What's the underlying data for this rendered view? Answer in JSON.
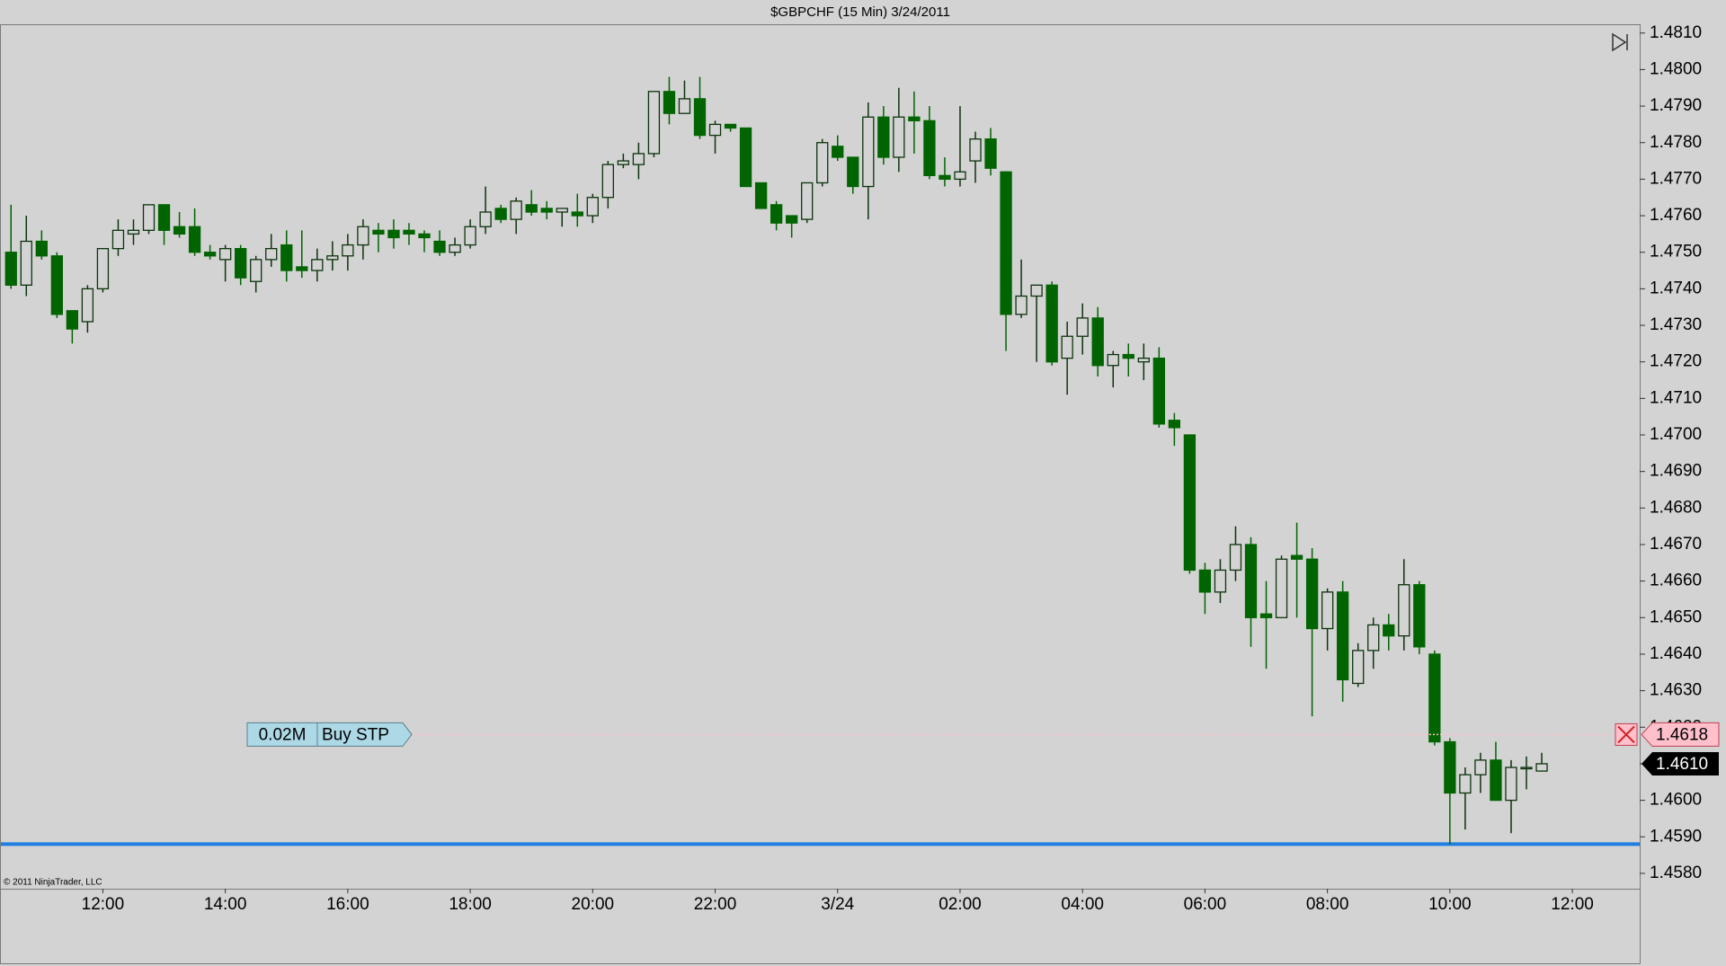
{
  "chart_data": {
    "type": "candlestick",
    "title": "$GBPCHF (15 Min)  3/24/2011",
    "copyright": "© 2011 NinjaTrader, LLC",
    "x": [
      10.5,
      10.75,
      11,
      11.25,
      11.5,
      11.75,
      12,
      12.25,
      12.5,
      12.75,
      13,
      13.25,
      13.5,
      13.75,
      14,
      14.25,
      14.5,
      14.75,
      15,
      15.25,
      15.5,
      15.75,
      16,
      16.25,
      16.5,
      16.75,
      17,
      17.25,
      17.5,
      17.75,
      18,
      18.25,
      18.5,
      18.75,
      19,
      19.25,
      19.5,
      19.75,
      20,
      20.25,
      20.5,
      20.75,
      21,
      21.25,
      21.5,
      21.75,
      22,
      22.25,
      22.5,
      22.75,
      23,
      23.25,
      23.5,
      23.75,
      24,
      24.25,
      24.5,
      24.75,
      25,
      25.25,
      25.5,
      25.75,
      26,
      26.25,
      26.5,
      26.75,
      27,
      27.25,
      27.5,
      27.75,
      28,
      28.25,
      28.5,
      28.75,
      29,
      29.25,
      29.5,
      29.75,
      30,
      30.25,
      30.5,
      30.75,
      31,
      31.25,
      31.5,
      31.75,
      32,
      32.25,
      32.5,
      32.75,
      33,
      33.25,
      33.5,
      33.75,
      34,
      34.25,
      34.5,
      34.75,
      35,
      35.25,
      35.5
    ],
    "open": [
      1.475,
      1.4741,
      1.4753,
      1.4749,
      1.4734,
      1.4731,
      1.474,
      1.4751,
      1.4755,
      1.4756,
      1.4763,
      1.4757,
      1.4757,
      1.475,
      1.4748,
      1.4751,
      1.4742,
      1.4748,
      1.4752,
      1.4746,
      1.4745,
      1.4748,
      1.4749,
      1.4752,
      1.4756,
      1.4756,
      1.4756,
      1.4755,
      1.4753,
      1.475,
      1.4752,
      1.4757,
      1.4762,
      1.4759,
      1.4763,
      1.4762,
      1.4761,
      1.4761,
      1.476,
      1.4765,
      1.4774,
      1.4774,
      1.4777,
      1.4794,
      1.4788,
      1.4792,
      1.4782,
      1.4785,
      1.4784,
      1.4769,
      1.4763,
      1.476,
      1.4759,
      1.4769,
      1.4779,
      1.4776,
      1.4768,
      1.4787,
      1.4776,
      1.4787,
      1.4786,
      1.4771,
      1.477,
      1.4775,
      1.4781,
      1.4772,
      1.4733,
      1.4738,
      1.4741,
      1.4721,
      1.4727,
      1.4732,
      1.4719,
      1.4722,
      1.472,
      1.4721,
      1.4704,
      1.47,
      1.4663,
      1.4657,
      1.4663,
      1.467,
      1.4651,
      1.465,
      1.4667,
      1.4666,
      1.4647,
      1.4657,
      1.4632,
      1.4641,
      1.4648,
      1.4645,
      1.4659,
      1.464,
      1.4616,
      1.4602,
      1.4607,
      1.4611,
      1.46,
      1.4609,
      1.4608
    ],
    "high": [
      1.4763,
      1.476,
      1.4756,
      1.475,
      1.4734,
      1.4741,
      1.4751,
      1.4759,
      1.4759,
      1.4763,
      1.4763,
      1.4761,
      1.4762,
      1.4752,
      1.4752,
      1.4752,
      1.4749,
      1.4755,
      1.4756,
      1.4756,
      1.4751,
      1.4753,
      1.4755,
      1.4759,
      1.4758,
      1.4759,
      1.4758,
      1.4756,
      1.4756,
      1.4754,
      1.4759,
      1.4768,
      1.4763,
      1.4765,
      1.4767,
      1.4764,
      1.4762,
      1.4766,
      1.4766,
      1.4775,
      1.4777,
      1.478,
      1.4794,
      1.4798,
      1.4797,
      1.4798,
      1.4786,
      1.4785,
      1.4784,
      1.4769,
      1.4764,
      1.476,
      1.4769,
      1.4781,
      1.4782,
      1.4776,
      1.4791,
      1.479,
      1.4795,
      1.4794,
      1.479,
      1.4776,
      1.479,
      1.4783,
      1.4784,
      1.4772,
      1.4748,
      1.4741,
      1.4742,
      1.4731,
      1.4736,
      1.4735,
      1.4723,
      1.4725,
      1.4725,
      1.4724,
      1.4706,
      1.47,
      1.4665,
      1.4666,
      1.4675,
      1.4672,
      1.466,
      1.4667,
      1.4676,
      1.4669,
      1.4658,
      1.466,
      1.4643,
      1.465,
      1.4651,
      1.4666,
      1.466,
      1.4641,
      1.4617,
      1.4609,
      1.4613,
      1.4616,
      1.4611,
      1.4612,
      1.4613
    ],
    "low": [
      1.474,
      1.4738,
      1.4748,
      1.4732,
      1.4725,
      1.4728,
      1.4739,
      1.4749,
      1.4752,
      1.4755,
      1.4752,
      1.4754,
      1.4749,
      1.4748,
      1.4742,
      1.4741,
      1.4739,
      1.4746,
      1.4742,
      1.4743,
      1.4742,
      1.4745,
      1.4745,
      1.4748,
      1.475,
      1.4751,
      1.4752,
      1.475,
      1.4749,
      1.4749,
      1.4751,
      1.4755,
      1.4758,
      1.4755,
      1.476,
      1.4759,
      1.4757,
      1.4757,
      1.4758,
      1.4762,
      1.4773,
      1.477,
      1.4776,
      1.4785,
      1.4788,
      1.4781,
      1.4777,
      1.4783,
      1.4768,
      1.4762,
      1.4756,
      1.4754,
      1.4758,
      1.4768,
      1.4775,
      1.4766,
      1.4759,
      1.4774,
      1.4772,
      1.4777,
      1.477,
      1.4768,
      1.4768,
      1.4769,
      1.4771,
      1.4723,
      1.4732,
      1.472,
      1.4719,
      1.4711,
      1.4722,
      1.4716,
      1.4713,
      1.4716,
      1.4715,
      1.4702,
      1.4697,
      1.4662,
      1.4651,
      1.4654,
      1.466,
      1.4642,
      1.4636,
      1.465,
      1.465,
      1.4623,
      1.4641,
      1.4627,
      1.4631,
      1.4636,
      1.4641,
      1.4641,
      1.464,
      1.4615,
      1.4588,
      1.4592,
      1.4602,
      1.46,
      1.4591,
      1.4603,
      1.4608
    ],
    "close": [
      1.4741,
      1.4753,
      1.4749,
      1.4733,
      1.4729,
      1.474,
      1.4751,
      1.4756,
      1.4756,
      1.4763,
      1.4756,
      1.4755,
      1.475,
      1.4749,
      1.4751,
      1.4743,
      1.4748,
      1.4751,
      1.4745,
      1.4745,
      1.4748,
      1.4749,
      1.4752,
      1.4757,
      1.4755,
      1.4754,
      1.4755,
      1.4754,
      1.475,
      1.4752,
      1.4757,
      1.4761,
      1.4759,
      1.4764,
      1.4761,
      1.4761,
      1.4762,
      1.476,
      1.4765,
      1.4774,
      1.4775,
      1.4777,
      1.4794,
      1.4788,
      1.4792,
      1.4782,
      1.4785,
      1.4784,
      1.4768,
      1.4762,
      1.4758,
      1.4758,
      1.4769,
      1.478,
      1.4776,
      1.4768,
      1.4787,
      1.4776,
      1.4787,
      1.4786,
      1.4771,
      1.477,
      1.4772,
      1.4781,
      1.4773,
      1.4733,
      1.4738,
      1.4741,
      1.472,
      1.4727,
      1.4732,
      1.4719,
      1.4722,
      1.4721,
      1.4721,
      1.4703,
      1.4702,
      1.4663,
      1.4657,
      1.4663,
      1.467,
      1.465,
      1.465,
      1.4666,
      1.4666,
      1.4647,
      1.4657,
      1.4633,
      1.4641,
      1.4648,
      1.4645,
      1.4659,
      1.4642,
      1.4616,
      1.4602,
      1.4607,
      1.4611,
      1.46,
      1.4609,
      1.4609,
      1.461
    ],
    "down_color": "#006400",
    "up_color": "#d3d3d3",
    "outline_color": "#0d330d",
    "xlim": [
      10.32,
      37.1
    ],
    "xticks": [
      {
        "value": 12,
        "label": "12:00"
      },
      {
        "value": 14,
        "label": "14:00"
      },
      {
        "value": 16,
        "label": "16:00"
      },
      {
        "value": 18,
        "label": "18:00"
      },
      {
        "value": 20,
        "label": "20:00"
      },
      {
        "value": 22,
        "label": "22:00"
      },
      {
        "value": 24,
        "label": "3/24"
      },
      {
        "value": 26,
        "label": "02:00"
      },
      {
        "value": 28,
        "label": "04:00"
      },
      {
        "value": 30,
        "label": "06:00"
      },
      {
        "value": 32,
        "label": "08:00"
      },
      {
        "value": 34,
        "label": "10:00"
      },
      {
        "value": 36,
        "label": "12:00"
      }
    ],
    "ylim": [
      1.45758,
      1.48124
    ],
    "yticks": [
      {
        "value": 1.458,
        "label": "1.4580"
      },
      {
        "value": 1.459,
        "label": "1.4590"
      },
      {
        "value": 1.46,
        "label": "1.4600"
      },
      {
        "value": 1.461,
        "label": "1.4610"
      },
      {
        "value": 1.462,
        "label": "1.4620"
      },
      {
        "value": 1.463,
        "label": "1.4630"
      },
      {
        "value": 1.464,
        "label": "1.4640"
      },
      {
        "value": 1.465,
        "label": "1.4650"
      },
      {
        "value": 1.466,
        "label": "1.4660"
      },
      {
        "value": 1.467,
        "label": "1.4670"
      },
      {
        "value": 1.468,
        "label": "1.4680"
      },
      {
        "value": 1.469,
        "label": "1.4690"
      },
      {
        "value": 1.47,
        "label": "1.4700"
      },
      {
        "value": 1.471,
        "label": "1.4710"
      },
      {
        "value": 1.472,
        "label": "1.4720"
      },
      {
        "value": 1.473,
        "label": "1.4730"
      },
      {
        "value": 1.474,
        "label": "1.4740"
      },
      {
        "value": 1.475,
        "label": "1.4750"
      },
      {
        "value": 1.476,
        "label": "1.4760"
      },
      {
        "value": 1.477,
        "label": "1.4770"
      },
      {
        "value": 1.478,
        "label": "1.4780"
      },
      {
        "value": 1.479,
        "label": "1.4790"
      },
      {
        "value": 1.48,
        "label": "1.4800"
      },
      {
        "value": 1.481,
        "label": "1.4810"
      }
    ],
    "order": {
      "quantity": "0.02M",
      "label": "Buy STP",
      "price": 1.4618,
      "color": "#ffc0cb"
    },
    "last_price": {
      "value": 1.461,
      "label": "1.4610"
    },
    "hline": {
      "value": 1.4588,
      "color": "#1e7fe0"
    }
  }
}
